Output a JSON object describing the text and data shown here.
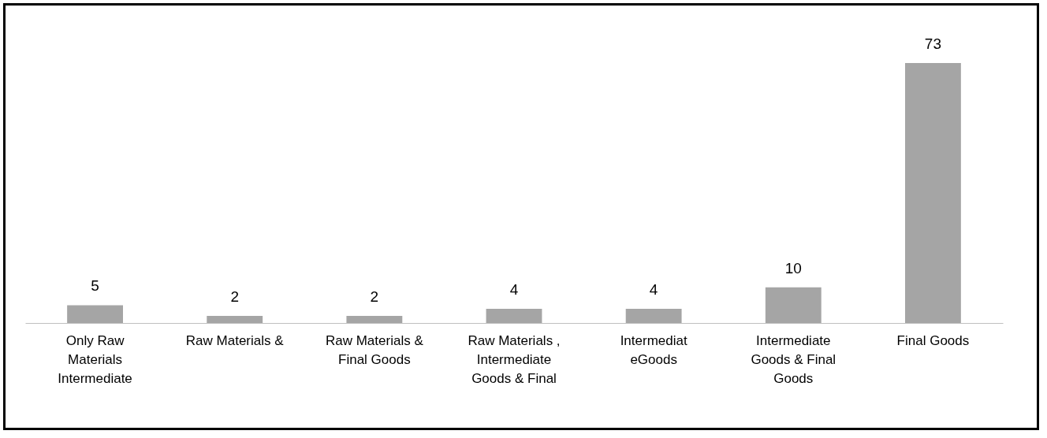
{
  "chart_data": {
    "type": "bar",
    "categories": [
      "Only Raw Materials Intermediate",
      "Raw Materials &",
      "Raw Materials & Final Goods",
      "Raw Materials , Intermediate Goods & Final",
      "Intermediat eGoods",
      "Intermediate Goods & Final Goods",
      "Final Goods"
    ],
    "values": [
      5,
      2,
      2,
      4,
      4,
      10,
      73
    ],
    "color": "#a5a5a5",
    "data_labels": true
  }
}
